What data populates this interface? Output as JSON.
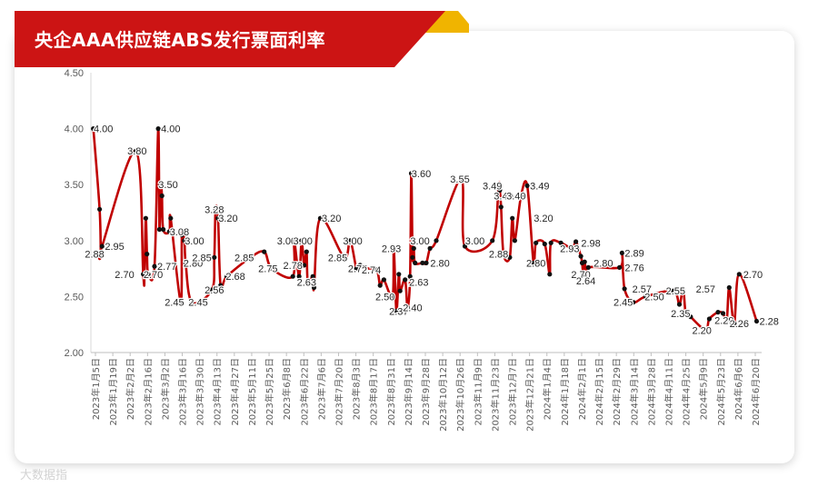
{
  "header": {
    "title": "央企AAA供应链ABS发行票面利率"
  },
  "watermark": "大数据指",
  "colors": {
    "line": "#c00000",
    "marker": "#111111",
    "banner": "#cc1414",
    "accent": "#f0b400"
  },
  "chart_data": {
    "type": "line",
    "title": "央企AAA供应链ABS发行票面利率",
    "xlabel": "",
    "ylabel": "",
    "ylim": [
      2.0,
      4.5
    ],
    "yticks": [
      "2.00",
      "2.50",
      "3.00",
      "3.50",
      "4.00",
      "4.50"
    ],
    "grid": false,
    "legend": "none",
    "x_date_range": [
      "2023-01-03",
      "2024-06-24"
    ],
    "x_tick_labels": [
      "2023年1月5日",
      "2023年1月19日",
      "2023年2月2日",
      "2023年2月16日",
      "2023年3月2日",
      "2023年3月16日",
      "2023年3月30日",
      "2023年4月13日",
      "2023年4月27日",
      "2023年5月11日",
      "2023年5月25日",
      "2023年6月8日",
      "2023年6月22日",
      "2023年7月6日",
      "2023年7月20日",
      "2023年8月3日",
      "2023年8月17日",
      "2023年8月31日",
      "2023年9月14日",
      "2023年9月28日",
      "2023年10月12日",
      "2023年10月26日",
      "2023年11月9日",
      "2023年11月23日",
      "2023年12月7日",
      "2023年12月21日",
      "2024年1月4日",
      "2024年1月18日",
      "2024年2月1日",
      "2024年2月15日",
      "2024年2月29日",
      "2024年3月14日",
      "2024年3月28日",
      "2024年4月11日",
      "2024年4月25日",
      "2024年5月9日",
      "2024年5月23日",
      "2024年6月6日",
      "2024年6月20日"
    ],
    "series": [
      {
        "points": [
          [
            "2023-01-05",
            4.0
          ],
          [
            "2023-01-10",
            3.28
          ],
          [
            "2023-01-11",
            2.88
          ],
          [
            "2023-01-12",
            2.95
          ],
          [
            "2023-02-08",
            3.8
          ],
          [
            "2023-02-14",
            2.7
          ],
          [
            "2023-02-15",
            2.7
          ],
          [
            "2023-02-16",
            3.2
          ],
          [
            "2023-02-17",
            2.88
          ],
          [
            "2023-02-18",
            2.7
          ],
          [
            "2023-02-23",
            2.77
          ],
          [
            "2023-02-26",
            4.0
          ],
          [
            "2023-02-27",
            3.1
          ],
          [
            "2023-02-28",
            3.5
          ],
          [
            "2023-03-01",
            3.4
          ],
          [
            "2023-03-02",
            3.1
          ],
          [
            "2023-03-07",
            3.08
          ],
          [
            "2023-03-08",
            3.2
          ],
          [
            "2023-03-16",
            2.45
          ],
          [
            "2023-03-17",
            3.05
          ],
          [
            "2023-03-19",
            3.0
          ],
          [
            "2023-03-20",
            2.8
          ],
          [
            "2023-03-25",
            2.45
          ],
          [
            "2023-04-10",
            2.56
          ],
          [
            "2023-04-12",
            2.85
          ],
          [
            "2023-04-13",
            3.28
          ],
          [
            "2023-04-15",
            3.2
          ],
          [
            "2023-04-17",
            2.6
          ],
          [
            "2023-04-22",
            2.68
          ],
          [
            "2023-05-11",
            2.85
          ],
          [
            "2023-05-22",
            2.9
          ],
          [
            "2023-05-28",
            2.75
          ],
          [
            "2023-06-14",
            2.68
          ],
          [
            "2023-06-15",
            3.0
          ],
          [
            "2023-06-19",
            2.68
          ],
          [
            "2023-06-21",
            3.0
          ],
          [
            "2023-06-23",
            2.78
          ],
          [
            "2023-06-25",
            2.9
          ],
          [
            "2023-06-26",
            2.63
          ],
          [
            "2023-06-30",
            2.68
          ],
          [
            "2023-07-01",
            2.58
          ],
          [
            "2023-07-06",
            3.2
          ],
          [
            "2023-07-25",
            2.85
          ],
          [
            "2023-07-30",
            3.0
          ],
          [
            "2023-08-04",
            2.75
          ],
          [
            "2023-08-07",
            2.78
          ],
          [
            "2023-08-10",
            2.75
          ],
          [
            "2023-08-20",
            2.74
          ],
          [
            "2023-08-23",
            2.6
          ],
          [
            "2023-08-26",
            2.65
          ],
          [
            "2023-09-02",
            2.5
          ],
          [
            "2023-09-03",
            2.93
          ],
          [
            "2023-09-05",
            2.37
          ],
          [
            "2023-09-07",
            2.7
          ],
          [
            "2023-09-08",
            2.55
          ],
          [
            "2023-09-12",
            2.65
          ],
          [
            "2023-09-14",
            2.4
          ],
          [
            "2023-09-16",
            2.68
          ],
          [
            "2023-09-17",
            3.6
          ],
          [
            "2023-09-18",
            2.85
          ],
          [
            "2023-09-19",
            2.93
          ],
          [
            "2023-09-20",
            2.8
          ],
          [
            "2023-09-26",
            2.8
          ],
          [
            "2023-09-29",
            2.8
          ],
          [
            "2023-10-02",
            2.93
          ],
          [
            "2023-10-07",
            3.0
          ],
          [
            "2023-10-27",
            3.55
          ],
          [
            "2023-10-30",
            2.95
          ],
          [
            "2023-11-21",
            3.0
          ],
          [
            "2023-11-26",
            3.49
          ],
          [
            "2023-11-27",
            3.45
          ],
          [
            "2023-11-28",
            3.3
          ],
          [
            "2023-11-30",
            2.88
          ],
          [
            "2023-12-05",
            2.85
          ],
          [
            "2023-12-07",
            3.2
          ],
          [
            "2023-12-09",
            3.0
          ],
          [
            "2023-12-14",
            3.4
          ],
          [
            "2023-12-19",
            3.49
          ],
          [
            "2023-12-24",
            2.8
          ],
          [
            "2023-12-26",
            2.98
          ],
          [
            "2024-01-02",
            2.97
          ],
          [
            "2024-01-06",
            2.7
          ],
          [
            "2024-01-07",
            2.98
          ],
          [
            "2024-01-15",
            2.98
          ],
          [
            "2024-01-24",
            2.93
          ],
          [
            "2024-01-27",
            2.99
          ],
          [
            "2024-01-31",
            2.86
          ],
          [
            "2024-02-01",
            2.8
          ],
          [
            "2024-02-02",
            2.7
          ],
          [
            "2024-02-03",
            2.81
          ],
          [
            "2024-02-05",
            2.64
          ],
          [
            "2024-02-06",
            2.76
          ],
          [
            "2024-03-02",
            2.76
          ],
          [
            "2024-03-04",
            2.89
          ],
          [
            "2024-03-06",
            2.57
          ],
          [
            "2024-03-13",
            2.45
          ],
          [
            "2024-03-23",
            2.5
          ],
          [
            "2024-04-14",
            2.55
          ],
          [
            "2024-04-19",
            2.43
          ],
          [
            "2024-04-22",
            2.57
          ],
          [
            "2024-04-24",
            2.35
          ],
          [
            "2024-04-26",
            2.35
          ],
          [
            "2024-04-28",
            2.32
          ],
          [
            "2024-05-10",
            2.2
          ],
          [
            "2024-05-13",
            2.3
          ],
          [
            "2024-05-20",
            2.36
          ],
          [
            "2024-05-24",
            2.35
          ],
          [
            "2024-05-27",
            2.29
          ],
          [
            "2024-05-29",
            2.58
          ],
          [
            "2024-06-02",
            2.26
          ],
          [
            "2024-06-06",
            2.7
          ],
          [
            "2024-06-20",
            2.28
          ]
        ]
      }
    ],
    "data_labels": [
      {
        "x": "2023-01-13",
        "y": 4.0,
        "text": "4.00"
      },
      {
        "x": "2023-01-22",
        "y": 2.95,
        "text": "2.95"
      },
      {
        "x": "2023-01-06",
        "y": 2.88,
        "text": "2.88"
      },
      {
        "x": "2023-01-30",
        "y": 2.7,
        "text": "2.70"
      },
      {
        "x": "2023-02-09",
        "y": 3.8,
        "text": "3.80"
      },
      {
        "x": "2023-02-22",
        "y": 2.7,
        "text": "2.70"
      },
      {
        "x": "2023-03-05",
        "y": 2.77,
        "text": "2.77"
      },
      {
        "x": "2023-03-08",
        "y": 4.0,
        "text": "4.00"
      },
      {
        "x": "2023-03-06",
        "y": 3.5,
        "text": "3.50"
      },
      {
        "x": "2023-03-15",
        "y": 3.08,
        "text": "3.08"
      },
      {
        "x": "2023-03-11",
        "y": 2.45,
        "text": "2.45"
      },
      {
        "x": "2023-03-27",
        "y": 3.0,
        "text": "3.00"
      },
      {
        "x": "2023-03-26",
        "y": 2.8,
        "text": "2.80"
      },
      {
        "x": "2023-04-02",
        "y": 2.85,
        "text": "2.85"
      },
      {
        "x": "2023-03-30",
        "y": 2.45,
        "text": "2.45"
      },
      {
        "x": "2023-04-12",
        "y": 3.28,
        "text": "3.28"
      },
      {
        "x": "2023-04-23",
        "y": 3.2,
        "text": "3.20"
      },
      {
        "x": "2023-04-12",
        "y": 2.56,
        "text": "2.56"
      },
      {
        "x": "2023-04-29",
        "y": 2.68,
        "text": "2.68"
      },
      {
        "x": "2023-05-06",
        "y": 2.85,
        "text": "2.85"
      },
      {
        "x": "2023-05-25",
        "y": 2.75,
        "text": "2.75"
      },
      {
        "x": "2023-06-09",
        "y": 3.0,
        "text": "3.00"
      },
      {
        "x": "2023-06-22",
        "y": 3.0,
        "text": "3.00"
      },
      {
        "x": "2023-06-14",
        "y": 2.78,
        "text": "2.78"
      },
      {
        "x": "2023-06-25",
        "y": 2.63,
        "text": "2.63"
      },
      {
        "x": "2023-07-15",
        "y": 3.2,
        "text": "3.20"
      },
      {
        "x": "2023-07-20",
        "y": 2.85,
        "text": "2.85"
      },
      {
        "x": "2023-08-01",
        "y": 3.0,
        "text": "3.00"
      },
      {
        "x": "2023-08-05",
        "y": 2.75,
        "text": "2.75"
      },
      {
        "x": "2023-08-16",
        "y": 2.74,
        "text": "2.74"
      },
      {
        "x": "2023-08-27",
        "y": 2.5,
        "text": "2.50"
      },
      {
        "x": "2023-09-01",
        "y": 2.93,
        "text": "2.93"
      },
      {
        "x": "2023-09-07",
        "y": 2.37,
        "text": "2.37"
      },
      {
        "x": "2023-09-18",
        "y": 2.4,
        "text": "2.40"
      },
      {
        "x": "2023-09-25",
        "y": 3.6,
        "text": "3.60"
      },
      {
        "x": "2023-09-24",
        "y": 3.0,
        "text": "3.00"
      },
      {
        "x": "2023-09-23",
        "y": 2.63,
        "text": "2.63"
      },
      {
        "x": "2023-10-10",
        "y": 2.8,
        "text": "2.80"
      },
      {
        "x": "2023-10-26",
        "y": 3.55,
        "text": "3.55"
      },
      {
        "x": "2023-11-07",
        "y": 3.0,
        "text": "3.00"
      },
      {
        "x": "2023-11-21",
        "y": 3.49,
        "text": "3.49"
      },
      {
        "x": "2023-11-30",
        "y": 3.4,
        "text": "3.40"
      },
      {
        "x": "2023-11-26",
        "y": 2.88,
        "text": "2.88"
      },
      {
        "x": "2023-12-10",
        "y": 3.4,
        "text": "3.40"
      },
      {
        "x": "2023-12-29",
        "y": 3.49,
        "text": "3.49"
      },
      {
        "x": "2024-01-01",
        "y": 3.2,
        "text": "3.20"
      },
      {
        "x": "2023-12-26",
        "y": 2.8,
        "text": "2.80"
      },
      {
        "x": "2024-01-22",
        "y": 2.93,
        "text": "2.93"
      },
      {
        "x": "2024-02-08",
        "y": 2.98,
        "text": "2.98"
      },
      {
        "x": "2024-01-31",
        "y": 2.7,
        "text": "2.70"
      },
      {
        "x": "2024-02-18",
        "y": 2.8,
        "text": "2.80"
      },
      {
        "x": "2024-02-04",
        "y": 2.64,
        "text": "2.64"
      },
      {
        "x": "2024-03-14",
        "y": 2.89,
        "text": "2.89"
      },
      {
        "x": "2024-03-14",
        "y": 2.76,
        "text": "2.76"
      },
      {
        "x": "2024-03-05",
        "y": 2.45,
        "text": "2.45"
      },
      {
        "x": "2024-03-20",
        "y": 2.57,
        "text": "2.57"
      },
      {
        "x": "2024-03-30",
        "y": 2.5,
        "text": "2.50"
      },
      {
        "x": "2024-04-16",
        "y": 2.55,
        "text": "2.55"
      },
      {
        "x": "2024-04-20",
        "y": 2.35,
        "text": "2.35"
      },
      {
        "x": "2024-05-10",
        "y": 2.57,
        "text": "2.57"
      },
      {
        "x": "2024-05-07",
        "y": 2.2,
        "text": "2.20"
      },
      {
        "x": "2024-05-25",
        "y": 2.29,
        "text": "2.29"
      },
      {
        "x": "2024-06-06",
        "y": 2.26,
        "text": "2.26"
      },
      {
        "x": "2024-06-17",
        "y": 2.7,
        "text": "2.70"
      },
      {
        "x": "2024-06-30",
        "y": 2.28,
        "text": "2.28"
      }
    ]
  }
}
